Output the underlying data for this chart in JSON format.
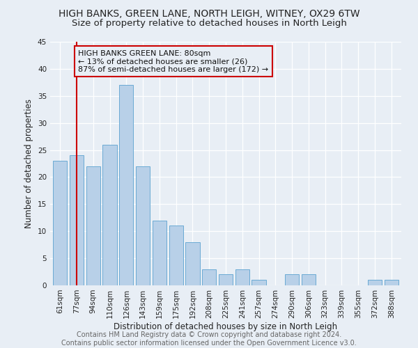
{
  "title": "HIGH BANKS, GREEN LANE, NORTH LEIGH, WITNEY, OX29 6TW",
  "subtitle": "Size of property relative to detached houses in North Leigh",
  "xlabel": "Distribution of detached houses by size in North Leigh",
  "ylabel": "Number of detached properties",
  "categories": [
    "61sqm",
    "77sqm",
    "94sqm",
    "110sqm",
    "126sqm",
    "143sqm",
    "159sqm",
    "175sqm",
    "192sqm",
    "208sqm",
    "225sqm",
    "241sqm",
    "257sqm",
    "274sqm",
    "290sqm",
    "306sqm",
    "323sqm",
    "339sqm",
    "355sqm",
    "372sqm",
    "388sqm"
  ],
  "values": [
    23,
    24,
    22,
    26,
    37,
    22,
    12,
    11,
    8,
    3,
    2,
    3,
    1,
    0,
    2,
    2,
    0,
    0,
    0,
    1,
    1
  ],
  "bar_color": "#b8d0e8",
  "bar_edge_color": "#6aaad4",
  "vline_x": 1,
  "vline_color": "#cc0000",
  "annotation_text": "HIGH BANKS GREEN LANE: 80sqm\n← 13% of detached houses are smaller (26)\n87% of semi-detached houses are larger (172) →",
  "annotation_box_color": "#cc0000",
  "ylim": [
    0,
    45
  ],
  "yticks": [
    0,
    5,
    10,
    15,
    20,
    25,
    30,
    35,
    40,
    45
  ],
  "footer": "Contains HM Land Registry data © Crown copyright and database right 2024.\nContains public sector information licensed under the Open Government Licence v3.0.",
  "bg_color": "#e8eef5",
  "grid_color": "#ffffff",
  "title_fontsize": 10,
  "subtitle_fontsize": 9.5,
  "xlabel_fontsize": 8.5,
  "ylabel_fontsize": 8.5,
  "tick_fontsize": 7.5,
  "annotation_fontsize": 8,
  "footer_fontsize": 7
}
